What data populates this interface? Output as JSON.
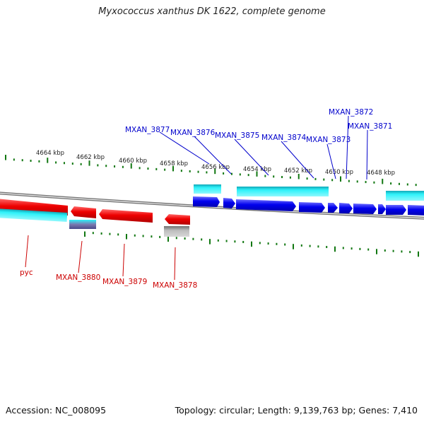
{
  "title": "Myxococcus xanthus DK 1622, complete genome",
  "footer": {
    "accession": "Accession: NC_008095",
    "summary": "Topology: circular; Length: 9,139,763 bp; Genes: 7,410"
  },
  "colors": {
    "forward_gene": "#0000ee",
    "forward_cds": "#22e6f0",
    "reverse_gene": "#ee0000",
    "reverse_cds": "#22e6f0",
    "pseudo_gene": "#aaaaaa",
    "backbone": "#888888",
    "ticks": "#117711",
    "forward_label": "#0000cc",
    "reverse_label": "#cc0000"
  },
  "scale_kbp": [
    4664,
    4662,
    4660,
    4658,
    4656,
    4654,
    4652,
    4650,
    4648
  ],
  "scale_labels": [
    "4664 kbp",
    "4662 kbp",
    "4660 kbp",
    "4658 kbp",
    "4656 kbp",
    "4654 kbp",
    "4652 kbp",
    "4650 kbp",
    "4648 kbp"
  ],
  "forward_genes": [
    "MXAN_3877",
    "MXAN_3876",
    "MXAN_3875",
    "MXAN_3874",
    "MXAN_3873",
    "MXAN_3872",
    "MXAN_3871"
  ],
  "reverse_genes": [
    "pyc",
    "MXAN_3880",
    "MXAN_3879",
    "MXAN_3878"
  ]
}
